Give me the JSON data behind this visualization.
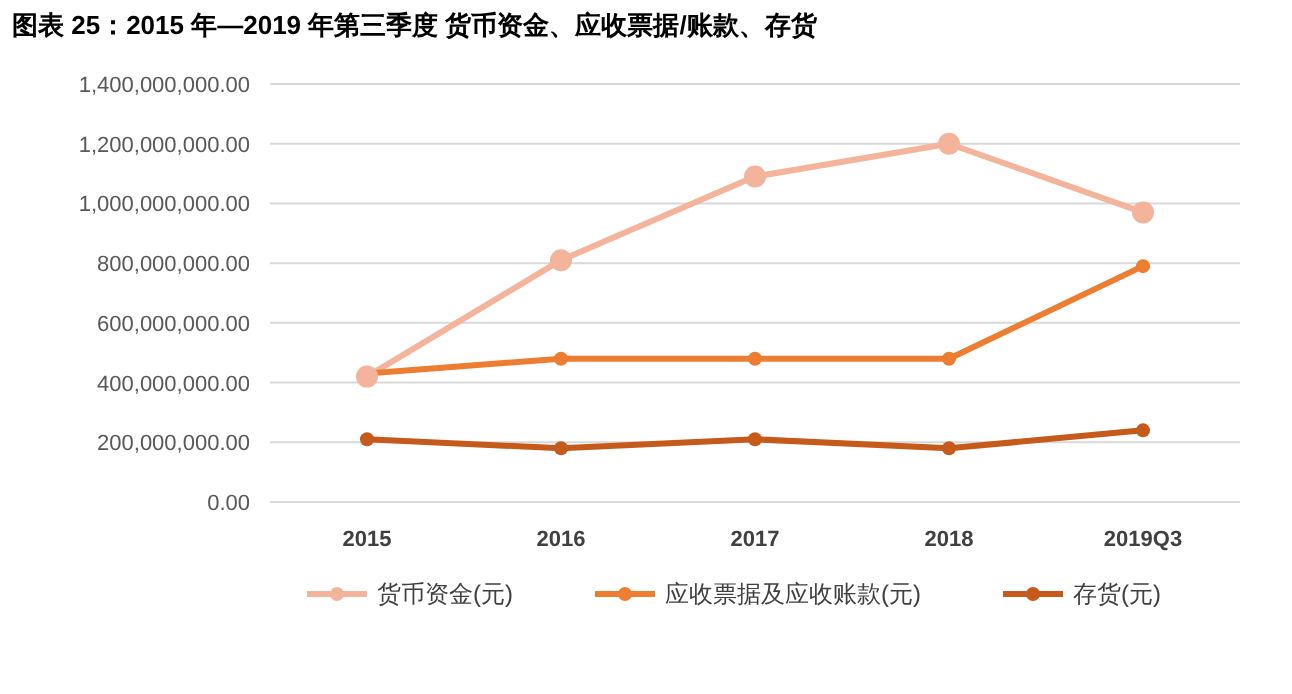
{
  "chart_data": {
    "type": "line",
    "title": "图表 25：2015 年—2019 年第三季度 货币资金、应收票据/账款、存货",
    "categories": [
      "2015",
      "2016",
      "2017",
      "2018",
      "2019Q3"
    ],
    "series": [
      {
        "name": "货币资金(元)",
        "color": "#f4b49b",
        "values": [
          420000000,
          810000000,
          1090000000,
          1200000000,
          970000000
        ]
      },
      {
        "name": "应收票据及应收账款(元)",
        "color": "#ed7d31",
        "values": [
          430000000,
          480000000,
          480000000,
          480000000,
          790000000
        ]
      },
      {
        "name": "存货(元)",
        "color": "#c55a1b",
        "values": [
          210000000,
          180000000,
          210000000,
          180000000,
          240000000
        ]
      }
    ],
    "ylim": [
      0,
      1400000000
    ],
    "yticks": [
      {
        "value": 0,
        "label": "0.00"
      },
      {
        "value": 200000000,
        "label": "200,000,000.00"
      },
      {
        "value": 400000000,
        "label": "400,000,000.00"
      },
      {
        "value": 600000000,
        "label": "600,000,000.00"
      },
      {
        "value": 800000000,
        "label": "800,000,000.00"
      },
      {
        "value": 1000000000,
        "label": "1,000,000,000.00"
      },
      {
        "value": 1200000000,
        "label": "1,200,000,000.00"
      },
      {
        "value": 1400000000,
        "label": "1,400,000,000.00"
      }
    ],
    "grid": "y",
    "legend": "bottom",
    "marker": "circle",
    "line_style": "solid"
  }
}
